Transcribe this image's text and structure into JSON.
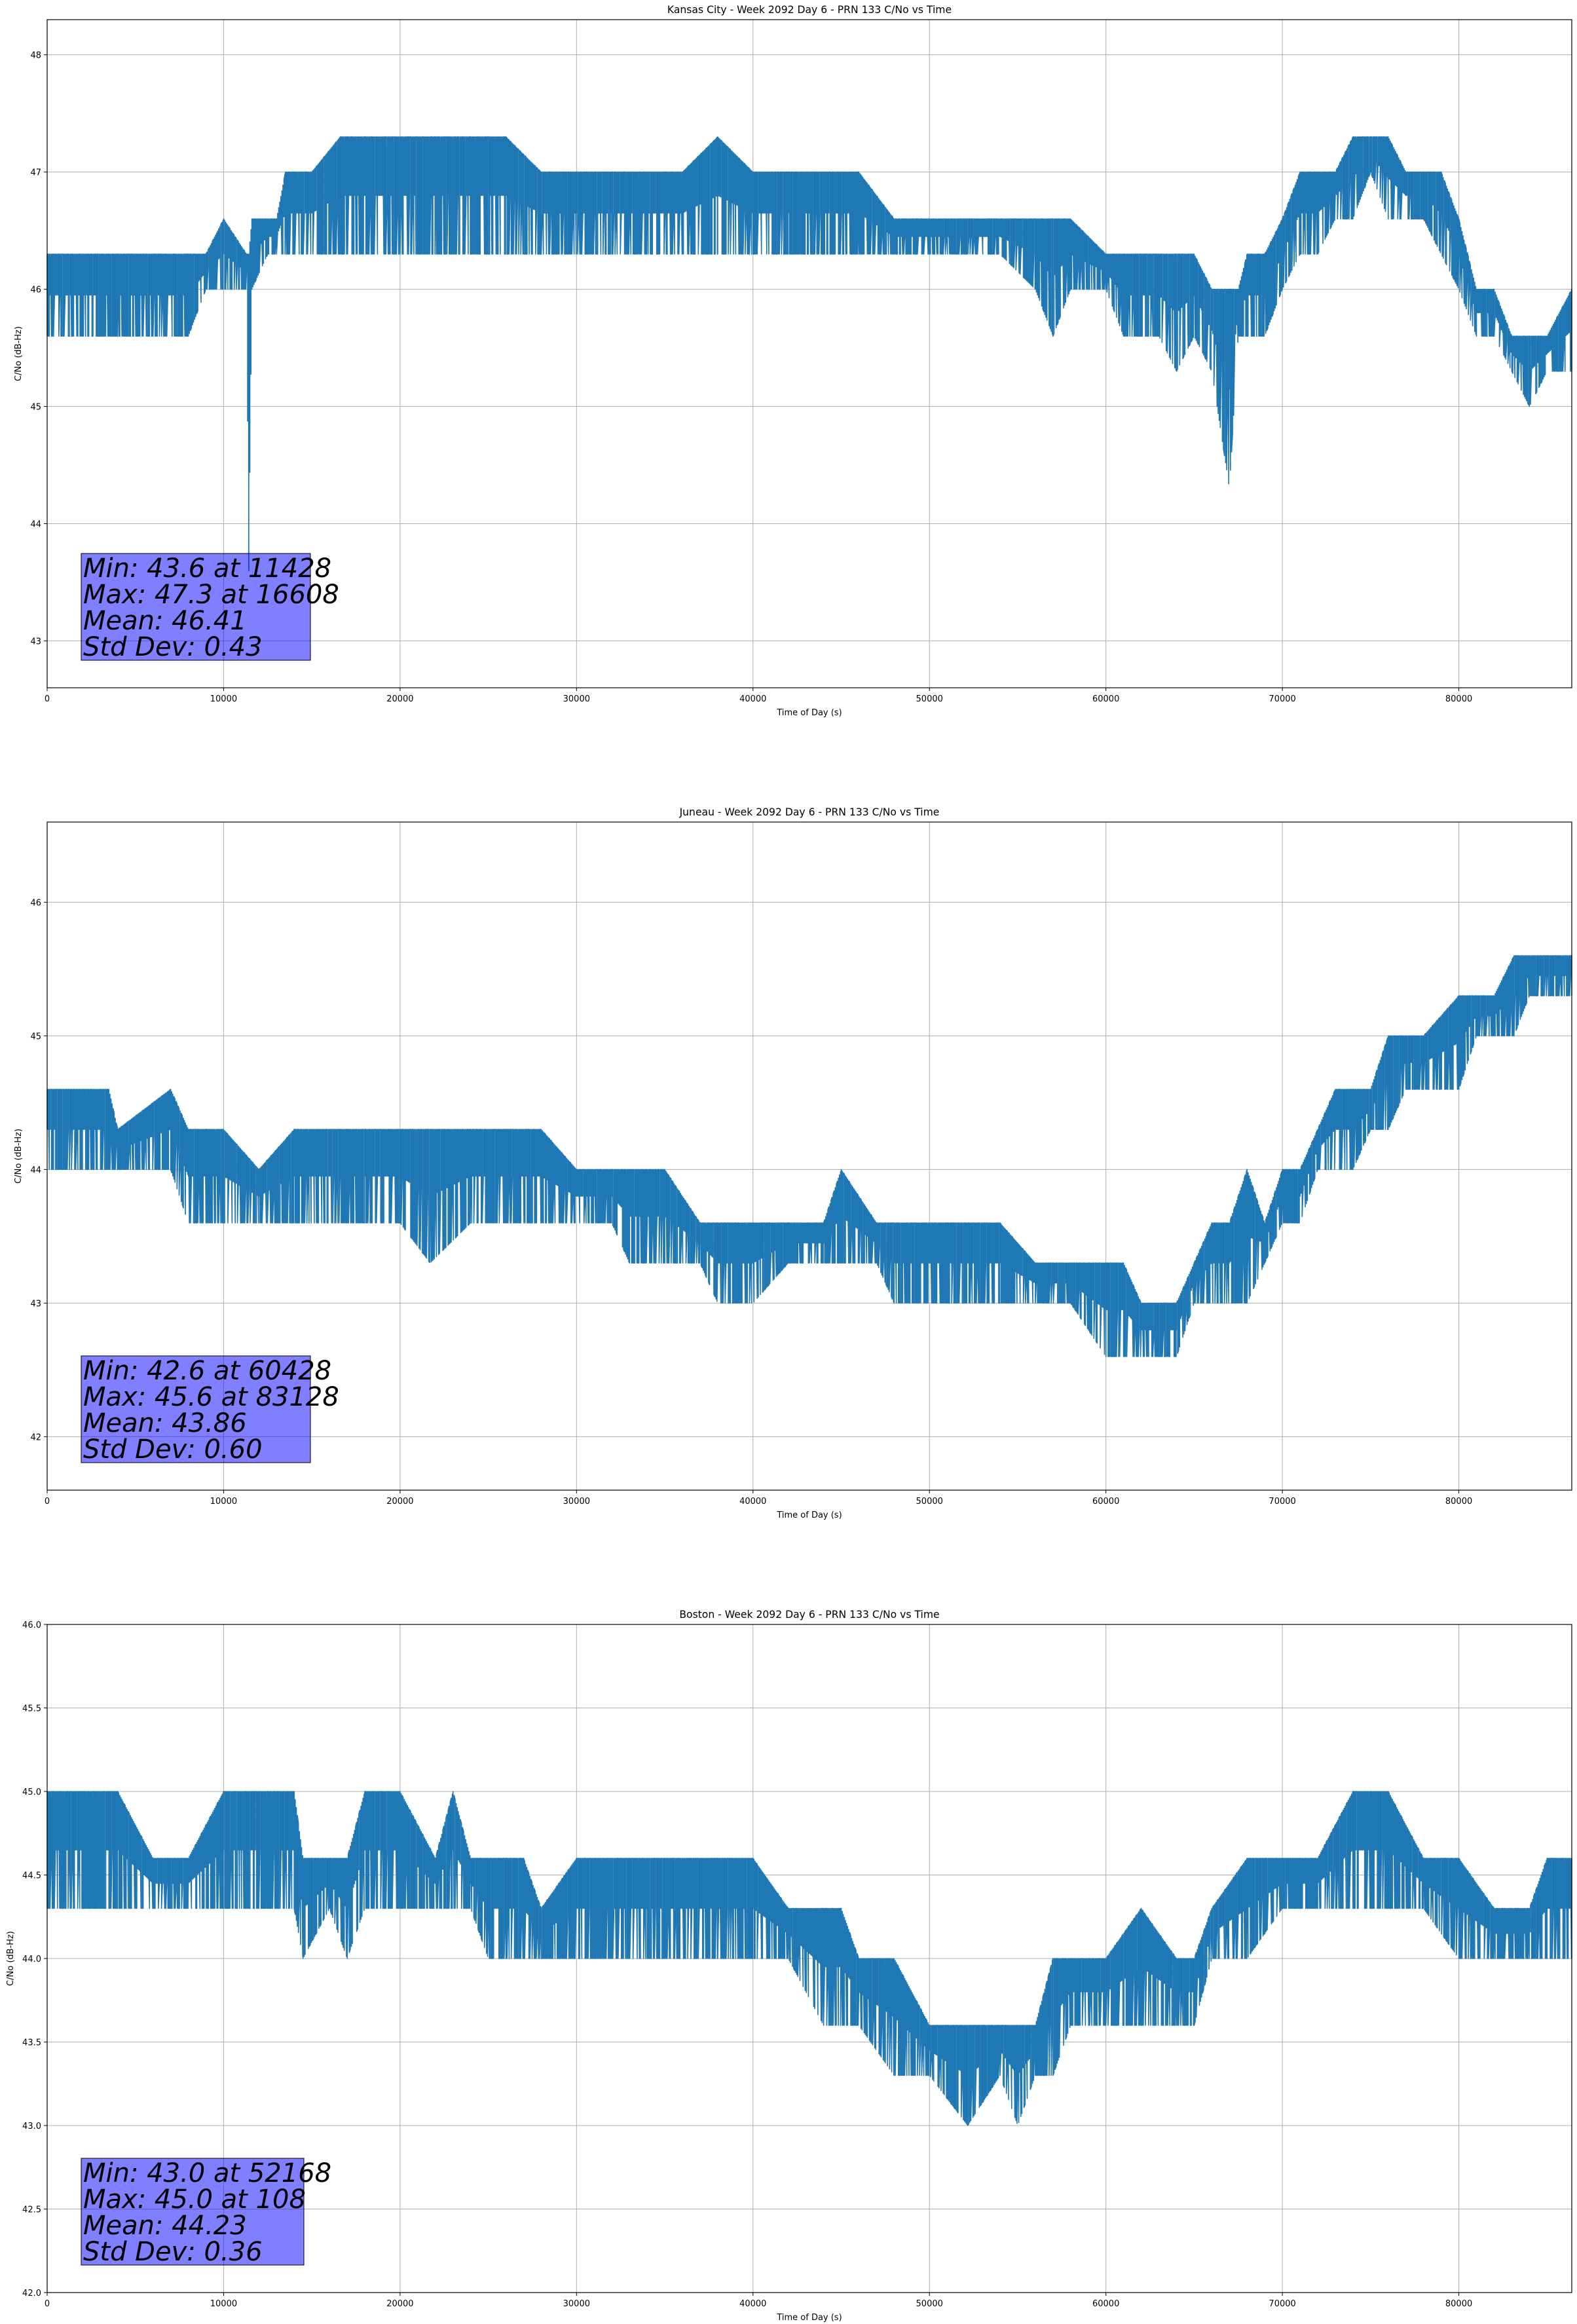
{
  "colors": {
    "series": "#1f77b4",
    "stat_box": "#8080ff",
    "grid": "#b0b0b0"
  },
  "chart_data": [
    {
      "type": "line",
      "title": "Kansas City - Week 2092 Day 6 - PRN 133 C/No vs Time",
      "xlabel": "Time of Day (s)",
      "ylabel": "C/No (dB-Hz)",
      "xlim": [
        0,
        86400
      ],
      "ylim": [
        42.6,
        48.3
      ],
      "xticks": [
        0,
        10000,
        20000,
        30000,
        40000,
        50000,
        60000,
        70000,
        80000
      ],
      "xtick_labels": [
        "0",
        "10000",
        "20000",
        "30000",
        "40000",
        "50000",
        "60000",
        "70000",
        "80000"
      ],
      "yticks": [
        43,
        44,
        45,
        46,
        47,
        48
      ],
      "ytick_labels": [
        "43",
        "44",
        "45",
        "46",
        "47",
        "48"
      ],
      "grid": true,
      "series": [
        {
          "name": "C/No",
          "envelope": [
            [
              0,
              45.6,
              46.3
            ],
            [
              2000,
              45.6,
              46.3
            ],
            [
              4000,
              45.6,
              46.3
            ],
            [
              6000,
              45.6,
              46.3
            ],
            [
              8000,
              45.6,
              46.3
            ],
            [
              9000,
              46.0,
              46.3
            ],
            [
              10000,
              46.0,
              46.6
            ],
            [
              11300,
              46.0,
              46.3
            ],
            [
              11428,
              43.6,
              46.3
            ],
            [
              11600,
              46.0,
              46.6
            ],
            [
              12500,
              46.3,
              46.6
            ],
            [
              13000,
              46.3,
              46.6
            ],
            [
              13500,
              46.3,
              47.0
            ],
            [
              15000,
              46.3,
              47.0
            ],
            [
              16608,
              46.3,
              47.3
            ],
            [
              18000,
              46.3,
              47.3
            ],
            [
              20000,
              46.3,
              47.3
            ],
            [
              22000,
              46.3,
              47.3
            ],
            [
              24000,
              46.3,
              47.3
            ],
            [
              26000,
              46.3,
              47.3
            ],
            [
              28000,
              46.3,
              47.0
            ],
            [
              30000,
              46.3,
              47.0
            ],
            [
              32000,
              46.3,
              47.0
            ],
            [
              34000,
              46.3,
              47.0
            ],
            [
              36000,
              46.3,
              47.0
            ],
            [
              38000,
              46.3,
              47.3
            ],
            [
              40000,
              46.3,
              47.0
            ],
            [
              42000,
              46.3,
              47.0
            ],
            [
              44000,
              46.3,
              47.0
            ],
            [
              46000,
              46.3,
              47.0
            ],
            [
              48000,
              46.3,
              46.6
            ],
            [
              50000,
              46.3,
              46.6
            ],
            [
              52000,
              46.3,
              46.6
            ],
            [
              54000,
              46.3,
              46.6
            ],
            [
              56000,
              46.0,
              46.6
            ],
            [
              57000,
              45.6,
              46.6
            ],
            [
              58000,
              46.0,
              46.6
            ],
            [
              60000,
              46.0,
              46.3
            ],
            [
              61000,
              45.6,
              46.3
            ],
            [
              62000,
              45.6,
              46.3
            ],
            [
              63000,
              45.6,
              46.3
            ],
            [
              64000,
              45.3,
              46.3
            ],
            [
              65000,
              45.6,
              46.3
            ],
            [
              66000,
              45.3,
              46.0
            ],
            [
              67000,
              44.3,
              46.0
            ],
            [
              67500,
              45.6,
              46.0
            ],
            [
              68000,
              45.6,
              46.3
            ],
            [
              69000,
              45.6,
              46.3
            ],
            [
              70000,
              46.0,
              46.6
            ],
            [
              71000,
              46.3,
              47.0
            ],
            [
              72000,
              46.3,
              47.0
            ],
            [
              73000,
              46.6,
              47.0
            ],
            [
              74000,
              46.6,
              47.3
            ],
            [
              75000,
              47.0,
              47.3
            ],
            [
              76000,
              46.6,
              47.3
            ],
            [
              77000,
              46.6,
              47.0
            ],
            [
              78000,
              46.6,
              47.0
            ],
            [
              79000,
              46.3,
              47.0
            ],
            [
              80000,
              46.0,
              46.6
            ],
            [
              81000,
              45.6,
              46.0
            ],
            [
              82000,
              45.6,
              46.0
            ],
            [
              83000,
              45.3,
              45.6
            ],
            [
              84000,
              45.0,
              45.6
            ],
            [
              85000,
              45.3,
              45.6
            ],
            [
              86400,
              45.3,
              46.0
            ]
          ]
        }
      ],
      "stats": [
        "Min: 43.6 at 11428",
        "Max: 47.3 at 16608",
        "Mean: 46.41",
        "Std Dev: 0.43"
      ]
    },
    {
      "type": "line",
      "title": "Juneau - Week 2092 Day 6 - PRN 133 C/No vs Time",
      "xlabel": "Time of Day (s)",
      "ylabel": "C/No (dB-Hz)",
      "xlim": [
        0,
        86400
      ],
      "ylim": [
        41.6,
        46.6
      ],
      "xticks": [
        0,
        10000,
        20000,
        30000,
        40000,
        50000,
        60000,
        70000,
        80000
      ],
      "xtick_labels": [
        "0",
        "10000",
        "20000",
        "30000",
        "40000",
        "50000",
        "60000",
        "70000",
        "80000"
      ],
      "yticks": [
        42,
        43,
        44,
        45,
        46
      ],
      "ytick_labels": [
        "42",
        "43",
        "44",
        "45",
        "46"
      ],
      "grid": true,
      "series": [
        {
          "name": "C/No",
          "envelope": [
            [
              0,
              44.0,
              44.6
            ],
            [
              2000,
              44.0,
              44.6
            ],
            [
              3500,
              44.0,
              44.6
            ],
            [
              4000,
              44.0,
              44.3
            ],
            [
              7000,
              44.0,
              44.6
            ],
            [
              8000,
              43.6,
              44.3
            ],
            [
              9000,
              43.6,
              44.3
            ],
            [
              10000,
              43.6,
              44.3
            ],
            [
              12000,
              43.6,
              44.0
            ],
            [
              14000,
              43.6,
              44.3
            ],
            [
              16000,
              43.6,
              44.3
            ],
            [
              18000,
              43.6,
              44.3
            ],
            [
              20000,
              43.6,
              44.3
            ],
            [
              21700,
              43.3,
              44.3
            ],
            [
              24000,
              43.6,
              44.3
            ],
            [
              26000,
              43.6,
              44.3
            ],
            [
              28000,
              43.6,
              44.3
            ],
            [
              30000,
              43.6,
              44.0
            ],
            [
              32000,
              43.6,
              44.0
            ],
            [
              33000,
              43.3,
              44.0
            ],
            [
              35000,
              43.3,
              44.0
            ],
            [
              37000,
              43.3,
              43.6
            ],
            [
              38000,
              43.0,
              43.6
            ],
            [
              40000,
              43.0,
              43.6
            ],
            [
              42000,
              43.3,
              43.6
            ],
            [
              44000,
              43.3,
              43.6
            ],
            [
              45000,
              43.3,
              44.0
            ],
            [
              47000,
              43.3,
              43.6
            ],
            [
              48000,
              43.0,
              43.6
            ],
            [
              50000,
              43.0,
              43.6
            ],
            [
              52000,
              43.0,
              43.6
            ],
            [
              54000,
              43.0,
              43.6
            ],
            [
              56000,
              43.0,
              43.3
            ],
            [
              58000,
              43.0,
              43.3
            ],
            [
              60000,
              42.6,
              43.3
            ],
            [
              61000,
              42.6,
              43.3
            ],
            [
              62000,
              42.6,
              43.0
            ],
            [
              64000,
              42.6,
              43.0
            ],
            [
              65000,
              43.0,
              43.3
            ],
            [
              66000,
              43.0,
              43.6
            ],
            [
              67000,
              43.0,
              43.6
            ],
            [
              68000,
              43.0,
              44.0
            ],
            [
              69000,
              43.3,
              43.6
            ],
            [
              70000,
              43.6,
              44.0
            ],
            [
              71000,
              43.6,
              44.0
            ],
            [
              72000,
              44.0,
              44.3
            ],
            [
              73000,
              44.0,
              44.6
            ],
            [
              74000,
              44.0,
              44.6
            ],
            [
              75000,
              44.3,
              44.6
            ],
            [
              76000,
              44.3,
              45.0
            ],
            [
              77000,
              44.6,
              45.0
            ],
            [
              78000,
              44.6,
              45.0
            ],
            [
              80000,
              44.6,
              45.3
            ],
            [
              81000,
              45.0,
              45.3
            ],
            [
              82000,
              45.0,
              45.3
            ],
            [
              83128,
              45.0,
              45.6
            ],
            [
              84000,
              45.3,
              45.6
            ],
            [
              86400,
              45.3,
              45.6
            ]
          ]
        }
      ],
      "stats": [
        "Min: 42.6 at 60428",
        "Max: 45.6 at 83128",
        "Mean: 43.86",
        "Std Dev: 0.60"
      ]
    },
    {
      "type": "line",
      "title": "Boston - Week 2092 Day 6 - PRN 133 C/No vs Time",
      "xlabel": "Time of Day (s)",
      "ylabel": "C/No (dB-Hz)",
      "xlim": [
        0,
        86400
      ],
      "ylim": [
        42.0,
        46.0
      ],
      "xticks": [
        0,
        10000,
        20000,
        30000,
        40000,
        50000,
        60000,
        70000,
        80000
      ],
      "xtick_labels": [
        "0",
        "10000",
        "20000",
        "30000",
        "40000",
        "50000",
        "60000",
        "70000",
        "80000"
      ],
      "yticks": [
        42.0,
        42.5,
        43.0,
        43.5,
        44.0,
        44.5,
        45.0,
        45.5,
        46.0
      ],
      "ytick_labels": [
        "42.0",
        "42.5",
        "43.0",
        "43.5",
        "44.0",
        "44.5",
        "45.0",
        "45.5",
        "46.0"
      ],
      "grid": true,
      "series": [
        {
          "name": "C/No",
          "envelope": [
            [
              0,
              44.3,
              45.0
            ],
            [
              108,
              44.3,
              45.0
            ],
            [
              2000,
              44.3,
              45.0
            ],
            [
              4000,
              44.3,
              45.0
            ],
            [
              6000,
              44.3,
              44.6
            ],
            [
              8000,
              44.3,
              44.6
            ],
            [
              10000,
              44.3,
              45.0
            ],
            [
              12000,
              44.3,
              45.0
            ],
            [
              14000,
              44.3,
              45.0
            ],
            [
              14500,
              44.0,
              44.6
            ],
            [
              16000,
              44.3,
              44.6
            ],
            [
              17000,
              44.0,
              44.6
            ],
            [
              18000,
              44.3,
              45.0
            ],
            [
              20000,
              44.3,
              45.0
            ],
            [
              22000,
              44.3,
              44.6
            ],
            [
              23000,
              44.3,
              45.0
            ],
            [
              24000,
              44.3,
              44.6
            ],
            [
              25000,
              44.0,
              44.6
            ],
            [
              26000,
              44.0,
              44.6
            ],
            [
              27000,
              44.0,
              44.6
            ],
            [
              28000,
              44.0,
              44.3
            ],
            [
              30000,
              44.0,
              44.6
            ],
            [
              32000,
              44.0,
              44.6
            ],
            [
              34000,
              44.0,
              44.6
            ],
            [
              36000,
              44.0,
              44.6
            ],
            [
              38000,
              44.0,
              44.6
            ],
            [
              40000,
              44.0,
              44.6
            ],
            [
              42000,
              44.0,
              44.3
            ],
            [
              44000,
              43.6,
              44.3
            ],
            [
              45000,
              43.6,
              44.3
            ],
            [
              46000,
              43.6,
              44.0
            ],
            [
              48000,
              43.3,
              44.0
            ],
            [
              50000,
              43.3,
              43.6
            ],
            [
              52168,
              43.0,
              43.6
            ],
            [
              54000,
              43.3,
              43.6
            ],
            [
              55000,
              43.0,
              43.6
            ],
            [
              56000,
              43.3,
              43.6
            ],
            [
              57000,
              43.3,
              44.0
            ],
            [
              58000,
              43.6,
              44.0
            ],
            [
              60000,
              43.6,
              44.0
            ],
            [
              62000,
              43.6,
              44.3
            ],
            [
              64000,
              43.6,
              44.0
            ],
            [
              65000,
              43.6,
              44.0
            ],
            [
              66000,
              44.0,
              44.3
            ],
            [
              68000,
              44.0,
              44.6
            ],
            [
              70000,
              44.3,
              44.6
            ],
            [
              72000,
              44.3,
              44.6
            ],
            [
              74000,
              44.3,
              45.0
            ],
            [
              76000,
              44.3,
              45.0
            ],
            [
              78000,
              44.3,
              44.6
            ],
            [
              80000,
              44.0,
              44.6
            ],
            [
              82000,
              44.0,
              44.3
            ],
            [
              84000,
              44.0,
              44.3
            ],
            [
              85000,
              44.0,
              44.6
            ],
            [
              86400,
              44.0,
              44.6
            ]
          ]
        }
      ],
      "stats": [
        "Min: 43.0 at 52168",
        "Max: 45.0 at 108",
        "Mean: 44.23",
        "Std Dev: 0.36"
      ]
    }
  ]
}
